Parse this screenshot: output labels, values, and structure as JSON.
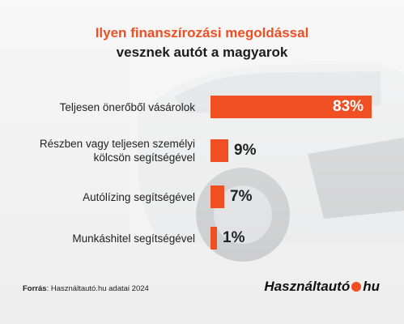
{
  "header": {
    "title_line1": "Ilyen finanszírozási megoldással",
    "title_line2": "vesznek autót a magyarok"
  },
  "chart_data": {
    "type": "bar",
    "orientation": "horizontal",
    "categories": [
      "Teljesen önerőből vásárolok",
      "Részben vagy teljesen személyi kölcsön segítségével",
      "Autólízing segítségével",
      "Munkáshitel segítségével"
    ],
    "category_lines": [
      [
        "Teljesen önerőből vásárolok"
      ],
      [
        "Részben vagy teljesen személyi",
        "kölcsön segítségével"
      ],
      [
        "Autólízing segítségével"
      ],
      [
        "Munkáshitel segítségével"
      ]
    ],
    "values": [
      83,
      9,
      7,
      1
    ],
    "value_labels": [
      "83%",
      "9%",
      "7%",
      "1%"
    ],
    "bar_color": "#f04e23"
  },
  "footer": {
    "source_label": "Forrás",
    "source_text": ": Használtautó.hu adatai 2024",
    "brand_left": "Használtautó",
    "brand_right": "hu"
  },
  "colors": {
    "accent": "#f04e23",
    "text": "#222222"
  }
}
